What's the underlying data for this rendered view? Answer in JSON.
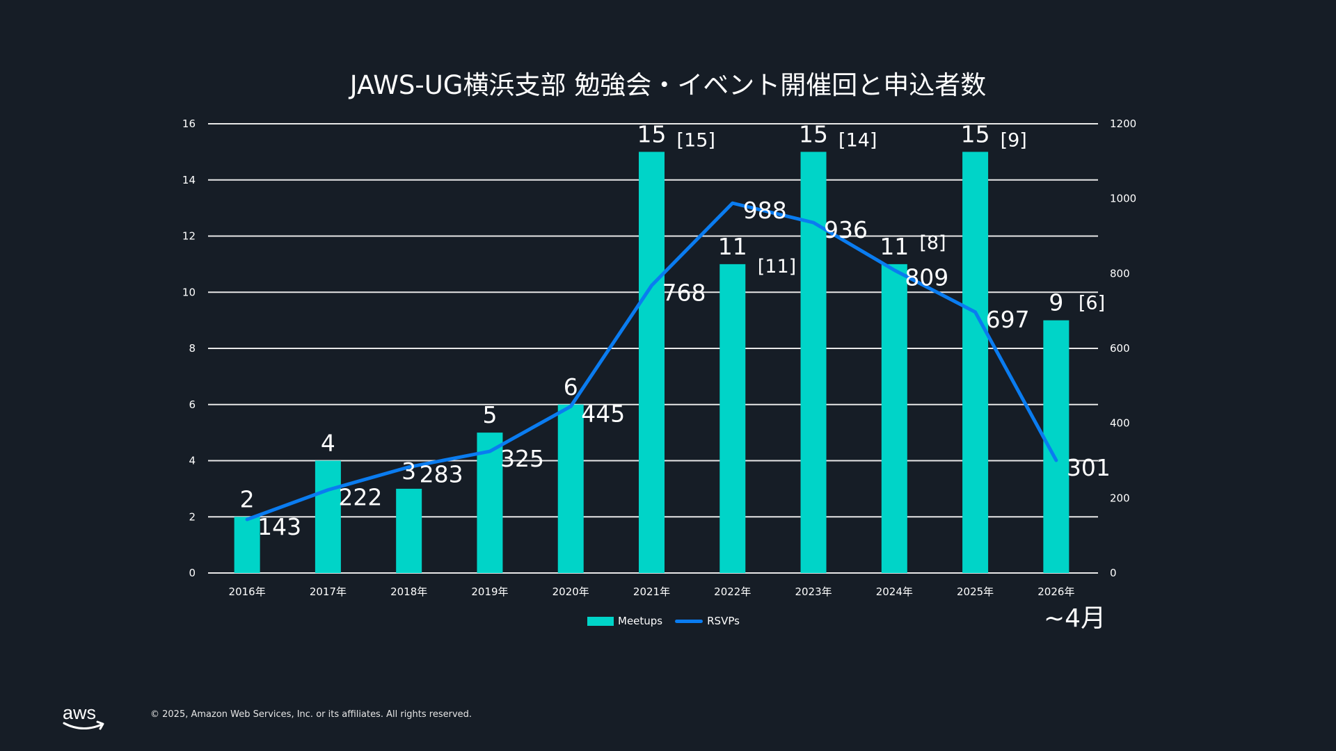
{
  "colors": {
    "background": "#161d26",
    "meetups": "#00d4c8",
    "rsvps": "#0a7cf0",
    "grid": "#e8e8e8",
    "text": "#ffffff"
  },
  "chart_data": {
    "type": "bar+line",
    "title": "JAWS-UG横浜支部 勉強会・イベント開催回と申込者数",
    "categories": [
      "2016年",
      "2017年",
      "2018年",
      "2019年",
      "2020年",
      "2021年",
      "2022年",
      "2023年",
      "2024年",
      "2025年",
      "2026年"
    ],
    "series": [
      {
        "name": "Meetups",
        "type": "bar",
        "axis": "left",
        "values": [
          2,
          4,
          3,
          5,
          6,
          15,
          11,
          15,
          11,
          15,
          9
        ]
      },
      {
        "name": "RSVPs",
        "type": "line",
        "axis": "right",
        "values": [
          143,
          222,
          283,
          325,
          445,
          768,
          988,
          936,
          809,
          697,
          301
        ]
      }
    ],
    "annotations": [
      {
        "category": "2021年",
        "text": "[15]"
      },
      {
        "category": "2022年",
        "text": "[11]"
      },
      {
        "category": "2023年",
        "text": "[14]"
      },
      {
        "category": "2024年",
        "text": "[8]"
      },
      {
        "category": "2025年",
        "text": "[9]"
      },
      {
        "category": "2026年",
        "text": "[6]"
      }
    ],
    "y_left": {
      "min": 0,
      "max": 16,
      "ticks": [
        0,
        2,
        4,
        6,
        8,
        10,
        12,
        14,
        16
      ]
    },
    "y_right": {
      "min": 0,
      "max": 1200,
      "ticks": [
        0,
        200,
        400,
        600,
        800,
        1000,
        1200
      ]
    },
    "grid": true,
    "legend": {
      "position": "bottom",
      "entries": [
        "Meetups",
        "RSVPs"
      ]
    },
    "note": "~4月"
  },
  "footer": {
    "logo": "aws",
    "copyright": "© 2025, Amazon Web Services, Inc. or its affiliates. All rights reserved."
  }
}
